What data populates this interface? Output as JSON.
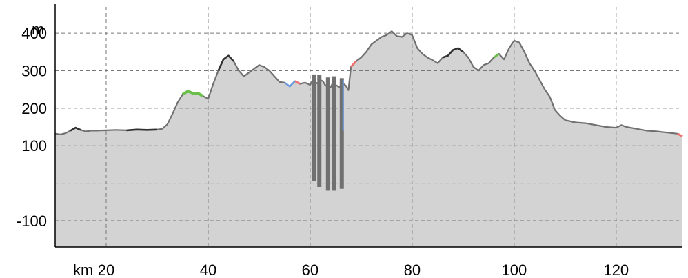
{
  "chart_data": {
    "type": "area",
    "title": "",
    "y_unit_label": "m",
    "x_unit_label": "km",
    "xlim": [
      10,
      133
    ],
    "ylim": [
      -170,
      470
    ],
    "y_ticks": [
      {
        "value": 400,
        "label": "400"
      },
      {
        "value": 300,
        "label": "300"
      },
      {
        "value": 200,
        "label": "200"
      },
      {
        "value": 100,
        "label": "100"
      },
      {
        "value": -100,
        "label": "-100"
      }
    ],
    "y_gridlines": [
      400,
      300,
      200,
      100,
      0,
      -100
    ],
    "x_ticks": [
      {
        "value": 20,
        "label": "20"
      },
      {
        "value": 40,
        "label": "40"
      },
      {
        "value": 60,
        "label": "60"
      },
      {
        "value": 80,
        "label": "80"
      },
      {
        "value": 100,
        "label": "100"
      },
      {
        "value": 120,
        "label": "120"
      }
    ],
    "x_gridlines": [
      20,
      40,
      60,
      80,
      100,
      120
    ],
    "grid": true,
    "colors": {
      "fill": "#d3d3d3",
      "line": "#707070",
      "dark": "#303030",
      "green": "#6abf4b",
      "red": "#f07070",
      "blue": "#6a9ae0",
      "grid": "#777777",
      "axis": "#000000"
    },
    "series": [
      {
        "x": [
          10,
          11,
          12,
          13,
          14,
          15,
          16,
          17,
          18,
          20,
          22,
          24,
          26,
          28,
          30,
          31,
          32,
          33,
          34,
          35,
          36,
          37,
          38,
          39,
          40,
          41,
          42,
          43,
          44,
          45,
          46,
          47,
          48,
          49,
          50,
          51,
          52,
          53,
          54,
          55,
          56,
          57,
          58,
          59,
          60,
          60.5,
          61,
          61.5,
          62,
          62.5,
          63,
          63.5,
          64,
          64.5,
          65,
          65.5,
          66,
          66.5,
          67,
          67.5,
          68,
          69,
          70,
          71,
          72,
          73,
          74,
          75,
          76,
          77,
          78,
          79,
          80,
          81,
          82,
          83,
          84,
          85,
          86,
          87,
          88,
          89,
          90,
          91,
          92,
          93,
          94,
          95,
          96,
          97,
          98,
          99,
          100,
          101,
          102,
          103,
          104,
          105,
          106,
          107,
          108,
          109,
          110,
          112,
          114,
          116,
          118,
          120,
          121,
          122,
          124,
          126,
          128,
          130,
          132,
          133
        ],
        "y": [
          132,
          130,
          133,
          140,
          148,
          142,
          138,
          140,
          140,
          141,
          142,
          141,
          143,
          142,
          143,
          145,
          157,
          185,
          215,
          237,
          245,
          240,
          240,
          232,
          225,
          265,
          300,
          330,
          340,
          325,
          300,
          285,
          295,
          305,
          315,
          310,
          300,
          285,
          270,
          268,
          258,
          272,
          265,
          268,
          262,
          275,
          270,
          265,
          275,
          272,
          260,
          262,
          255,
          270,
          262,
          258,
          255,
          265,
          260,
          248,
          310,
          325,
          335,
          350,
          370,
          380,
          390,
          395,
          405,
          392,
          390,
          400,
          395,
          360,
          345,
          335,
          328,
          320,
          335,
          340,
          355,
          360,
          350,
          335,
          310,
          300,
          315,
          320,
          335,
          345,
          330,
          360,
          380,
          375,
          350,
          320,
          300,
          275,
          250,
          230,
          195,
          180,
          168,
          162,
          160,
          155,
          150,
          148,
          155,
          150,
          145,
          140,
          138,
          135,
          132,
          125
        ]
      }
    ],
    "spikes": [
      {
        "x": 60.8,
        "y_low": 5,
        "y_high": 290
      },
      {
        "x": 61.8,
        "y_low": -10,
        "y_high": 288
      },
      {
        "x": 63.5,
        "y_low": -20,
        "y_high": 282
      },
      {
        "x": 64.7,
        "y_low": -20,
        "y_high": 285
      },
      {
        "x": 66.2,
        "y_low": -15,
        "y_high": 280
      }
    ]
  }
}
